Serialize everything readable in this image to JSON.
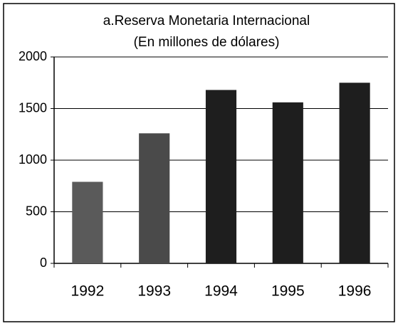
{
  "chart_data": {
    "type": "bar",
    "title": "a.Reserva Monetaria Internacional",
    "subtitle": "(En millones de dólares)",
    "categories": [
      "1992",
      "1993",
      "1994",
      "1995",
      "1996"
    ],
    "values": [
      790,
      1260,
      1680,
      1560,
      1750
    ],
    "colors": [
      "#5a5a5a",
      "#4a4a4a",
      "#1e1e1e",
      "#1e1e1e",
      "#1e1e1e"
    ],
    "ylim": [
      0,
      2000
    ],
    "yticks": [
      0,
      500,
      1000,
      1500,
      2000
    ],
    "grid": true
  }
}
